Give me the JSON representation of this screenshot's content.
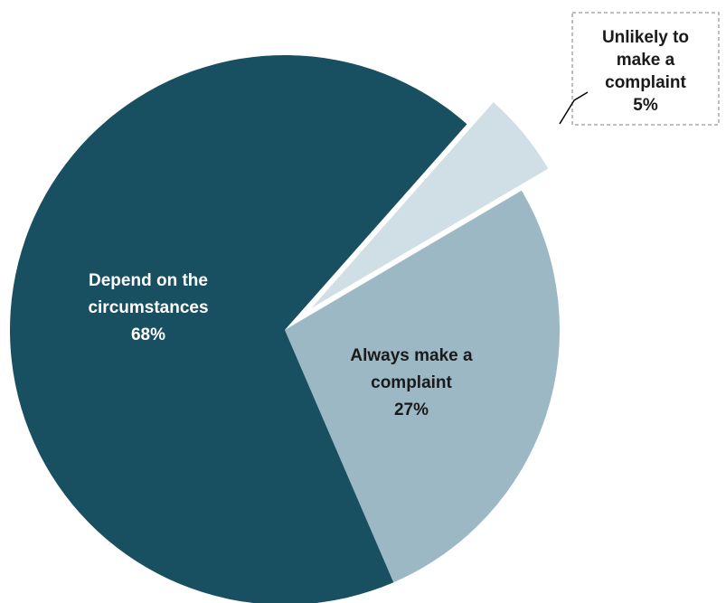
{
  "chart_data": {
    "type": "pie",
    "title": "",
    "slices": [
      {
        "key": "unlikely",
        "label_lines": [
          "Unlikely to",
          "make a",
          "complaint"
        ],
        "value_label": "5%",
        "value": 5,
        "color": "#cfdfe5",
        "text_color": "#1a1a1a",
        "exploded": true
      },
      {
        "key": "always",
        "label_lines": [
          "Always make a",
          "complaint"
        ],
        "value_label": "27%",
        "value": 27,
        "color": "#9cb8c4",
        "text_color": "#1a1a1a",
        "exploded": false
      },
      {
        "key": "depend",
        "label_lines": [
          "Depend on the",
          "circumstances"
        ],
        "value_label": "68%",
        "value": 68,
        "color": "#185061",
        "text_color": "#ffffff",
        "exploded": false
      }
    ],
    "legend": "none",
    "callout_border_color": "#aaaaaa"
  }
}
